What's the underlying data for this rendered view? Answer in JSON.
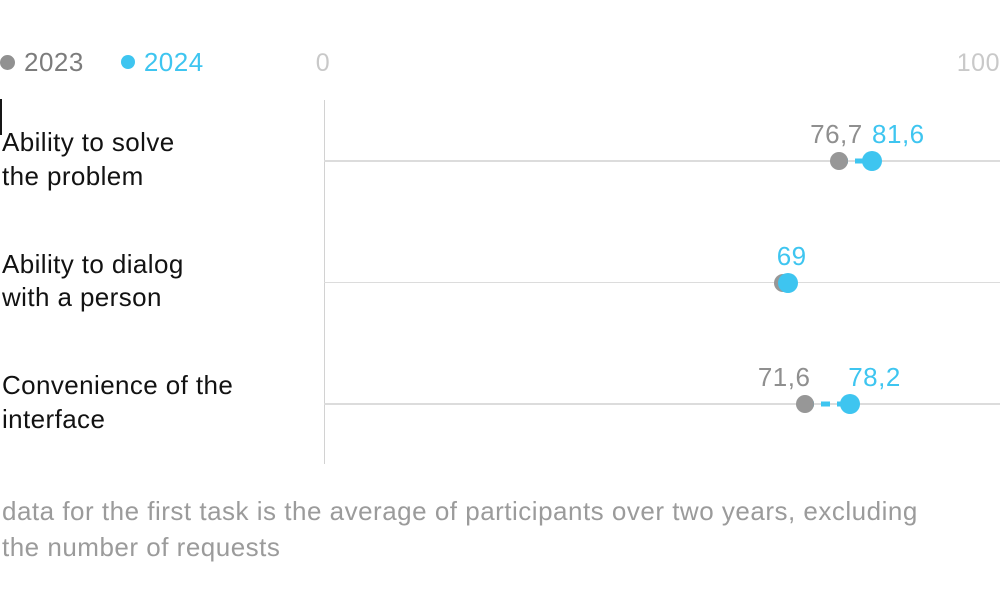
{
  "legend": {
    "items": [
      {
        "label": "2023",
        "color": "#919191"
      },
      {
        "label": "2024",
        "color": "#3ec5f0"
      }
    ]
  },
  "chart_data": {
    "type": "dumbbell",
    "title": "",
    "axis": {
      "min": 0,
      "max": 100,
      "min_label": "0",
      "max_label": "100",
      "orientation": "horizontal",
      "grid": "horizontal-row-lines"
    },
    "series": [
      {
        "name": "2023",
        "color": "#979797",
        "label_color": "#8f8f8f"
      },
      {
        "name": "2024",
        "color": "#3ec5f0",
        "label_color": "#3ec5f0"
      }
    ],
    "rows": [
      {
        "category_lines": [
          "Ability to solve",
          "the problem"
        ],
        "points": [
          {
            "series": "2023",
            "value": 76.7,
            "label": "76,7",
            "label_dx": -3
          },
          {
            "series": "2024",
            "value": 81.6,
            "label": "81,6",
            "label_dx": 26
          }
        ],
        "connector": true
      },
      {
        "category_lines": [
          "Ability to dialog",
          "with a person"
        ],
        "points": [
          {
            "series": "2023",
            "value": 68.3,
            "label": "",
            "label_dx": 0
          },
          {
            "series": "2024",
            "value": 69,
            "label": "69",
            "label_dx": 4
          }
        ],
        "connector": false
      },
      {
        "category_lines": [
          "Convenience of the",
          "interface"
        ],
        "points": [
          {
            "series": "2023",
            "value": 71.6,
            "label": "71,6",
            "label_dx": -21
          },
          {
            "series": "2024",
            "value": 78.2,
            "label": "78,2",
            "label_dx": 25
          }
        ],
        "connector": true
      }
    ]
  },
  "footnote_lines": [
    "data for the first task is the average of participants over two years, excluding",
    "the number of requests"
  ]
}
